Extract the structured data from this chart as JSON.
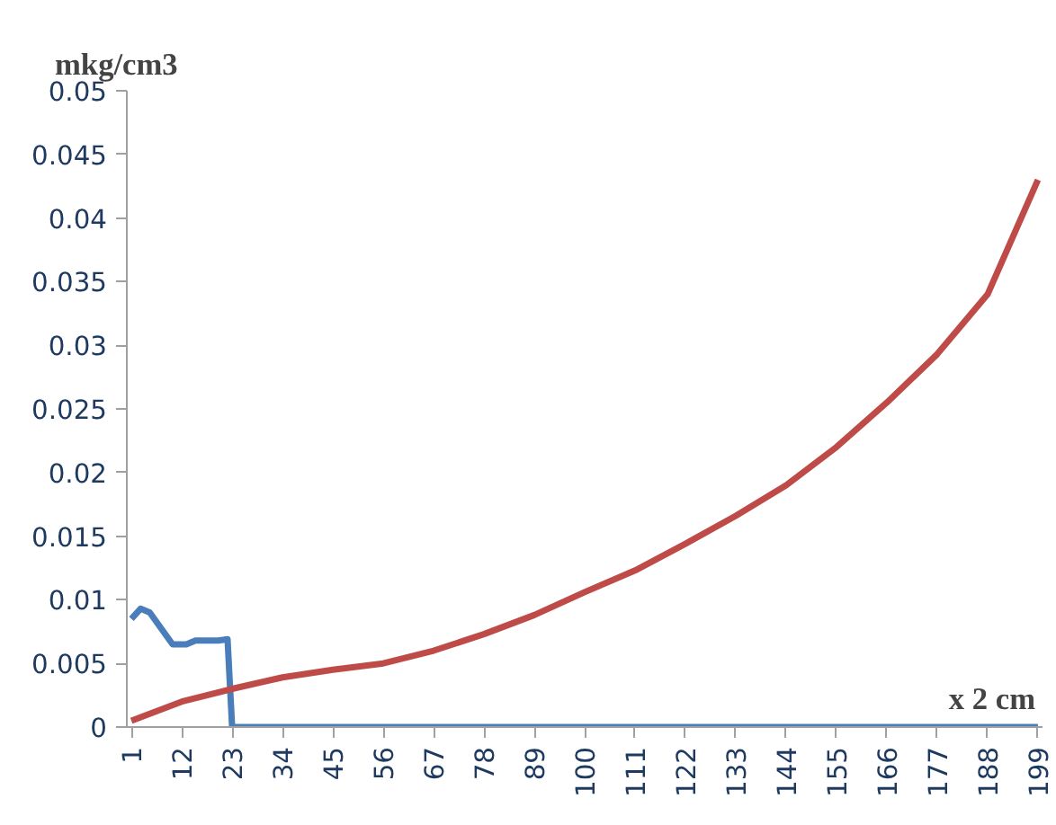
{
  "chart_data": {
    "type": "line",
    "xlabel": "x 2 cm",
    "ylabel": "mkg/cm3",
    "xlim": [
      0,
      200
    ],
    "xticks": [
      1,
      12,
      23,
      34,
      45,
      56,
      67,
      78,
      89,
      100,
      111,
      122,
      133,
      144,
      155,
      166,
      177,
      188,
      199
    ],
    "ylim": [
      0,
      0.05
    ],
    "yticks": [
      0,
      0.005,
      0.01,
      0.015,
      0.02,
      0.025,
      0.03,
      0.035,
      0.04,
      0.045,
      0.05
    ],
    "grid": false,
    "marker": "none",
    "line_style": "solid",
    "series": [
      {
        "color": "#4a7ebb",
        "x": [
          1,
          3,
          5,
          10,
          13,
          15,
          20,
          22,
          23,
          50,
          100,
          150,
          199
        ],
        "values": [
          0.0085,
          0.0093,
          0.009,
          0.0065,
          0.0065,
          0.0068,
          0.0068,
          0.0069,
          0,
          0,
          0,
          0,
          0
        ]
      },
      {
        "color": "#be4b48",
        "x": [
          1,
          12,
          23,
          34,
          45,
          56,
          67,
          78,
          89,
          100,
          111,
          122,
          133,
          144,
          155,
          166,
          177,
          188,
          199
        ],
        "values": [
          0.0005,
          0.002,
          0.003,
          0.0039,
          0.0045,
          0.005,
          0.006,
          0.0073,
          0.0088,
          0.0106,
          0.0123,
          0.0144,
          0.0166,
          0.019,
          0.022,
          0.0255,
          0.0293,
          0.034,
          0.043
        ]
      }
    ]
  }
}
